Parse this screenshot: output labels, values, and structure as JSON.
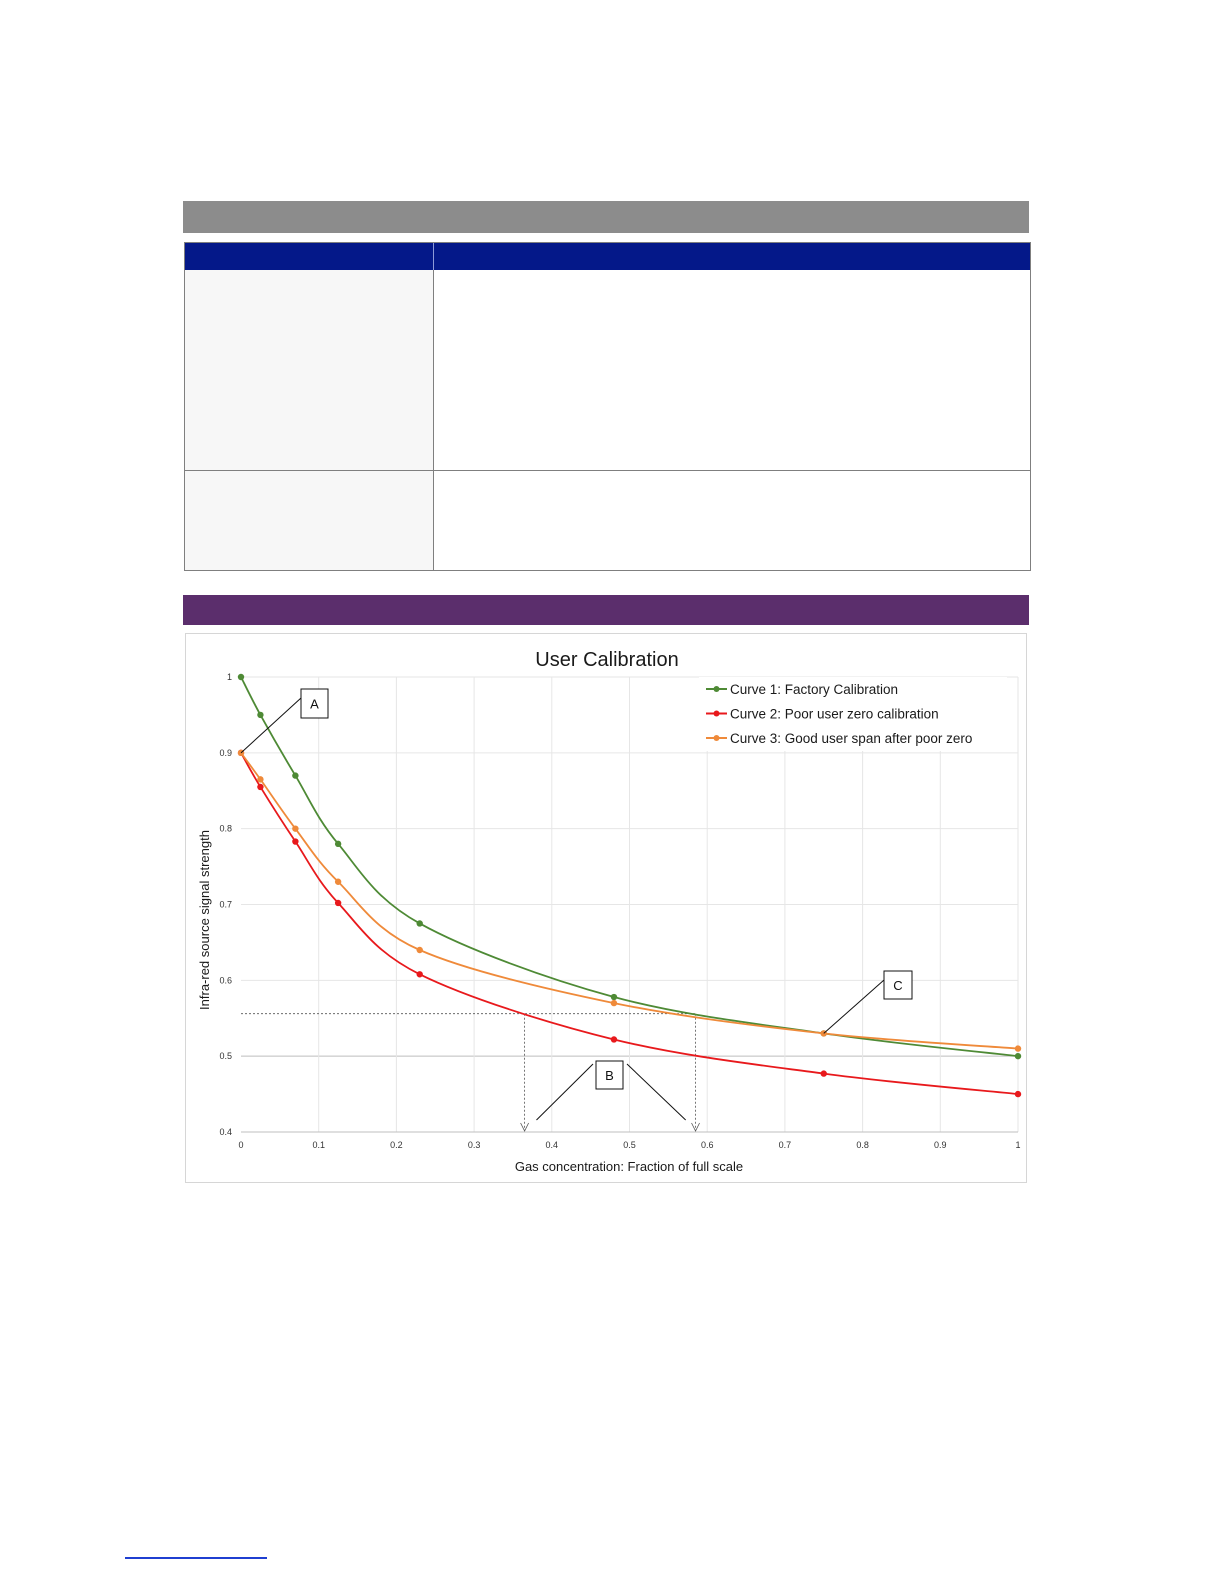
{
  "chart_data": {
    "type": "line",
    "title": "User Calibration",
    "xlabel": "Gas concentration: Fraction of full scale",
    "ylabel": "Infra-red source signal strength",
    "xlim": [
      0,
      1
    ],
    "ylim": [
      0.4,
      1
    ],
    "x_ticks": [
      0,
      0.1,
      0.2,
      0.3,
      0.4,
      0.5,
      0.6,
      0.7,
      0.8,
      0.9,
      1
    ],
    "x_tick_labels": [
      "0",
      "0.1",
      "0.2",
      "0.3",
      "0.4",
      "0.5",
      "0.6",
      "0.7",
      "0.8",
      "0.9",
      "1"
    ],
    "y_ticks": [
      0.4,
      0.5,
      0.6,
      0.7,
      0.8,
      0.9,
      1
    ],
    "y_tick_labels": [
      "0.4",
      "0.5",
      "0.6",
      "0.7",
      "0.8",
      "0.9",
      "1"
    ],
    "grid": true,
    "legend_position": "top-right",
    "series": [
      {
        "name": "Curve 1: Factory Calibration",
        "color": "#4e8a35",
        "x": [
          0,
          0.025,
          0.07,
          0.125,
          0.23,
          0.48,
          0.75,
          1
        ],
        "y": [
          1.0,
          0.95,
          0.87,
          0.78,
          0.675,
          0.578,
          0.53,
          0.5
        ]
      },
      {
        "name": "Curve 2: Poor user zero calibration",
        "color": "#e8191c",
        "x": [
          0,
          0.025,
          0.07,
          0.125,
          0.23,
          0.48,
          0.75,
          1
        ],
        "y": [
          0.9,
          0.855,
          0.783,
          0.702,
          0.608,
          0.522,
          0.477,
          0.45
        ]
      },
      {
        "name": "Curve 3: Good user span after poor zero",
        "color": "#ef8a3a",
        "x": [
          0,
          0.025,
          0.07,
          0.125,
          0.23,
          0.48,
          0.75,
          1
        ],
        "y": [
          0.9,
          0.865,
          0.8,
          0.73,
          0.64,
          0.57,
          0.53,
          0.51
        ]
      }
    ],
    "reference_lines": {
      "level_y": 0.556,
      "drop_x": [
        0.365,
        0.585
      ]
    },
    "annotations": [
      {
        "label": "A",
        "points_to": [
          [
            0,
            0.9
          ]
        ]
      },
      {
        "label": "B",
        "points_to": [
          [
            0.37,
            0.4
          ],
          [
            0.58,
            0.4
          ]
        ]
      },
      {
        "label": "C",
        "points_to": [
          [
            0.75,
            0.53
          ]
        ]
      }
    ]
  }
}
